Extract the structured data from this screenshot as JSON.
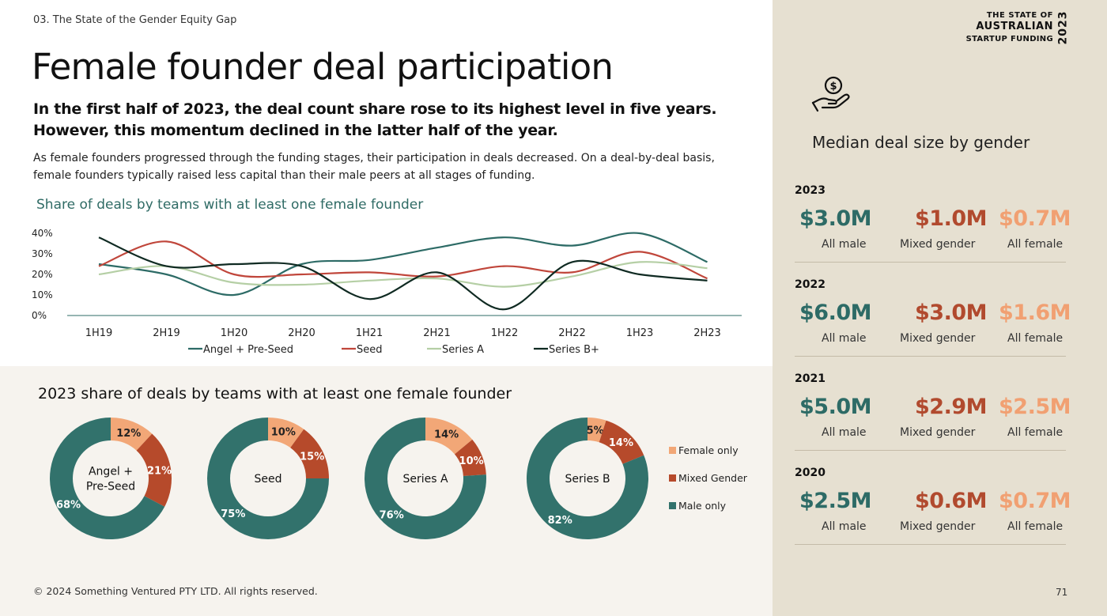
{
  "header": {
    "section": "03. The State of the Gender Equity Gap",
    "title": "Female founder deal participation",
    "subtitle": "In the first half of 2023, the deal count share rose to its highest level in five years. However, this momentum declined in the latter half of the year.",
    "body": "As female founders progressed through the funding stages, their participation in deals decreased. On a deal-by-deal basis, female founders typically raised less capital than their male peers at all stages of funding."
  },
  "brand": {
    "line1": "THE STATE OF",
    "line2": "AUSTRALIAN",
    "line3": "STARTUP FUNDING",
    "year": "2023"
  },
  "footer": {
    "copyright": "© 2024 Something Ventured PTY LTD. All rights reserved.",
    "page": "71"
  },
  "colors": {
    "teal": "#2d6b66",
    "red": "#c0463b",
    "light_green": "#b5cfa5",
    "dark": "#0f2a22",
    "female": "#f2a777",
    "mixed": "#b64a2b",
    "male": "#32726c"
  },
  "chart_data": [
    {
      "type": "line",
      "title": "Share of deals by teams with at least one female founder",
      "categories": [
        "1H19",
        "2H19",
        "1H20",
        "2H20",
        "1H21",
        "2H21",
        "1H22",
        "2H22",
        "1H23",
        "2H23"
      ],
      "y_ticks": [
        "40%",
        "30%",
        "20%",
        "10%",
        "0%"
      ],
      "ylim": [
        0,
        40
      ],
      "legend_position": "bottom",
      "series": [
        {
          "name": "Angel + Pre-Seed",
          "color": "#2d6b66",
          "values": [
            25,
            20,
            10,
            25,
            27,
            33,
            38,
            34,
            40,
            26
          ]
        },
        {
          "name": "Seed",
          "color": "#c0463b",
          "values": [
            24,
            36,
            20,
            20,
            21,
            19,
            24,
            21,
            31,
            18
          ]
        },
        {
          "name": "Series A",
          "color": "#b5cfa5",
          "values": [
            20,
            24,
            16,
            15,
            17,
            18,
            14,
            19,
            26,
            23
          ]
        },
        {
          "name": "Series B+",
          "color": "#0f2a22",
          "values": [
            38,
            24,
            25,
            24,
            8,
            21,
            3,
            26,
            20,
            17
          ]
        }
      ]
    },
    {
      "type": "pie",
      "title": "2023 share of deals by teams with at least one female founder",
      "legend_position": "right",
      "legend": [
        {
          "label": "Female only",
          "color": "#f2a777"
        },
        {
          "label": "Mixed Gender",
          "color": "#b64a2b"
        },
        {
          "label": "Male only",
          "color": "#32726c"
        }
      ],
      "donuts": [
        {
          "center_lines": [
            "Angel +",
            "Pre-Seed"
          ],
          "slices": [
            {
              "value": 12,
              "label": "12%"
            },
            {
              "value": 21,
              "label": "21%"
            },
            {
              "value": 68,
              "label": "68%"
            }
          ]
        },
        {
          "center_lines": [
            "Seed"
          ],
          "slices": [
            {
              "value": 10,
              "label": "10%"
            },
            {
              "value": 15,
              "label": "15%"
            },
            {
              "value": 75,
              "label": "75%"
            }
          ]
        },
        {
          "center_lines": [
            "Series A"
          ],
          "slices": [
            {
              "value": 14,
              "label": "14%"
            },
            {
              "value": 10,
              "label": "10%"
            },
            {
              "value": 76,
              "label": "76%"
            }
          ]
        },
        {
          "center_lines": [
            "Series B"
          ],
          "slices": [
            {
              "value": 5,
              "label": "5%"
            },
            {
              "value": 14,
              "label": "14%"
            },
            {
              "value": 82,
              "label": "82%"
            }
          ]
        }
      ]
    }
  ],
  "median": {
    "title": "Median deal size by gender",
    "labels": {
      "male": "All male",
      "mixed": "Mixed gender",
      "female": "All female"
    },
    "years": [
      {
        "year": "2023",
        "male": "$3.0M",
        "mixed": "$1.0M",
        "female": "$0.7M"
      },
      {
        "year": "2022",
        "male": "$6.0M",
        "mixed": "$3.0M",
        "female": "$1.6M"
      },
      {
        "year": "2021",
        "male": "$5.0M",
        "mixed": "$2.9M",
        "female": "$2.5M"
      },
      {
        "year": "2020",
        "male": "$2.5M",
        "mixed": "$0.6M",
        "female": "$0.7M"
      }
    ]
  }
}
